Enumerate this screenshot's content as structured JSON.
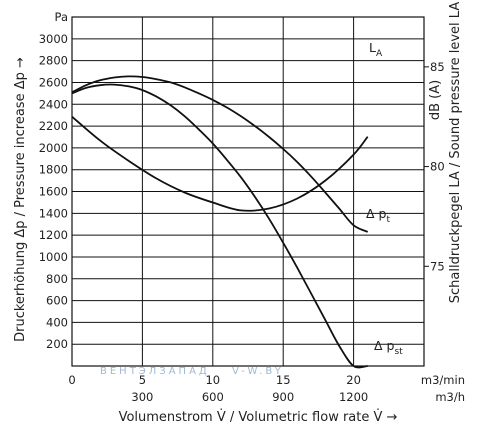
{
  "chart_data": {
    "type": "line",
    "x_unit_primary": "m3/min",
    "x_unit_secondary": "m3/h",
    "y_unit": "Pa",
    "xlim": [
      0,
      25
    ],
    "ylim": [
      0,
      3200
    ],
    "x_ticks_primary": [
      {
        "value": 0,
        "label": "0"
      },
      {
        "value": 5,
        "label": "5"
      },
      {
        "value": 10,
        "label": "10"
      },
      {
        "value": 15,
        "label": "15"
      },
      {
        "value": 20,
        "label": "20"
      }
    ],
    "x_ticks_secondary": [
      {
        "value": 5,
        "label": "300"
      },
      {
        "value": 10,
        "label": "600"
      },
      {
        "value": 15,
        "label": "900"
      },
      {
        "value": 20,
        "label": "1200"
      }
    ],
    "y_ticks": [
      {
        "value": 200,
        "label": "200"
      },
      {
        "value": 400,
        "label": "400"
      },
      {
        "value": 600,
        "label": "600"
      },
      {
        "value": 800,
        "label": "800"
      },
      {
        "value": 1000,
        "label": "1000"
      },
      {
        "value": 1200,
        "label": "1200"
      },
      {
        "value": 1400,
        "label": "1400"
      },
      {
        "value": 1600,
        "label": "1600"
      },
      {
        "value": 1800,
        "label": "1800"
      },
      {
        "value": 2000,
        "label": "2000"
      },
      {
        "value": 2200,
        "label": "2200"
      },
      {
        "value": 2400,
        "label": "2400"
      },
      {
        "value": 2600,
        "label": "2600"
      },
      {
        "value": 2800,
        "label": "2800"
      },
      {
        "value": 3000,
        "label": "3000"
      }
    ],
    "right_axis": {
      "label": "dB (A)",
      "ylim": [
        70,
        87.5
      ],
      "ticks": [
        {
          "value": 75,
          "label": "75"
        },
        {
          "value": 80,
          "label": "80"
        },
        {
          "value": 85,
          "label": "85"
        }
      ]
    },
    "xlabel": "Volumenstrom V̇ / Volumetric flow rate V̇ →",
    "ylabel": "Druckerhöhung Δp / Pressure increase Δp →",
    "ylabel_right": "Schalldruckpegel LA / Sound pressure level LA →",
    "series": [
      {
        "name": "Δ pt",
        "axis": "left",
        "x": [
          0,
          1,
          2,
          3,
          4,
          5,
          6,
          7,
          8,
          9,
          10,
          11,
          12,
          13,
          14,
          15,
          16,
          17,
          18,
          19,
          20,
          21
        ],
        "y": [
          2510,
          2575,
          2620,
          2645,
          2655,
          2650,
          2630,
          2600,
          2555,
          2500,
          2440,
          2370,
          2290,
          2200,
          2100,
          1990,
          1870,
          1735,
          1590,
          1440,
          1290,
          1230
        ]
      },
      {
        "name": "Δ pst",
        "axis": "left",
        "x": [
          0,
          1,
          2,
          3,
          4,
          5,
          6,
          7,
          8,
          9,
          10,
          11,
          12,
          13,
          14,
          15,
          16,
          17,
          18,
          19,
          20,
          21
        ],
        "y": [
          2500,
          2550,
          2575,
          2580,
          2565,
          2530,
          2470,
          2390,
          2290,
          2170,
          2040,
          1890,
          1730,
          1550,
          1350,
          1130,
          900,
          660,
          420,
          180,
          0,
          0
        ]
      },
      {
        "name": "LA",
        "axis": "right",
        "x": [
          0,
          2,
          4,
          6,
          8,
          10,
          12,
          14,
          16,
          18,
          20,
          21
        ],
        "y": [
          82.5,
          81.3,
          80.3,
          79.4,
          78.7,
          78.2,
          77.8,
          77.9,
          78.4,
          79.3,
          80.6,
          81.5
        ]
      }
    ],
    "series_labels": [
      {
        "series": "LA",
        "text": "L",
        "sub": "A"
      },
      {
        "series": "Δ pt",
        "text": "Δ p",
        "sub": "t"
      },
      {
        "series": "Δ pst",
        "text": "Δ p",
        "sub": "st"
      }
    ],
    "watermark": "ВЕНТЭЛЗАПАД",
    "watermark_url": "V-W.BY",
    "grid": true
  }
}
